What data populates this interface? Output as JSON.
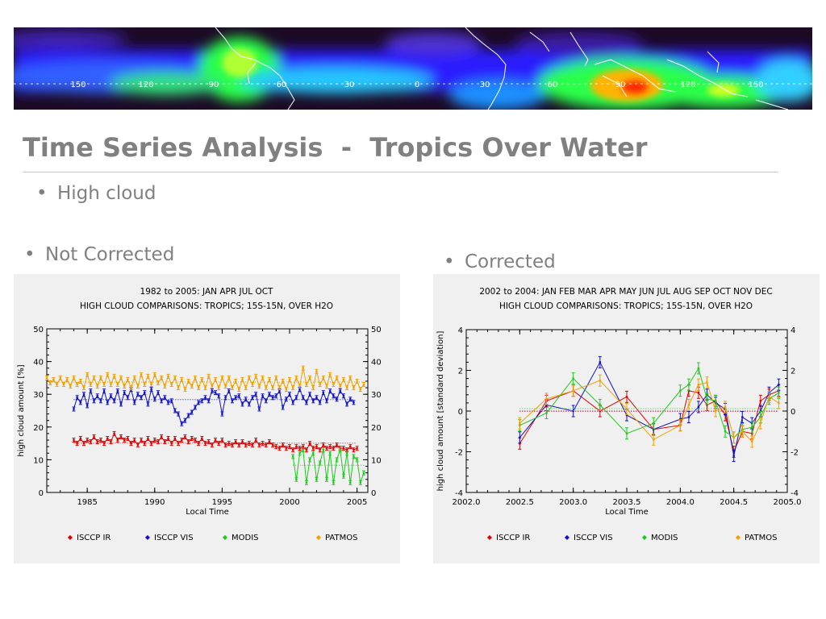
{
  "slide": {
    "title": "Time Series Analysis  -  Tropics Over Water",
    "bullets": [
      {
        "marker": "•",
        "text": "High cloud"
      },
      {
        "marker": "•",
        "text": "Not Corrected"
      },
      {
        "marker": "•",
        "text": "Corrected"
      }
    ]
  },
  "banner": {
    "longitude_labels": [
      "150",
      "120",
      "90",
      "60",
      "30",
      "0",
      "30",
      "60",
      "90",
      "120",
      "150"
    ],
    "colors": {
      "background": "#1c0a24",
      "band": "#2a1cff",
      "high": "#2bff4a",
      "peak": "#ffb400",
      "max": "#ff2a00"
    }
  },
  "chart_data": [
    {
      "type": "line",
      "title": "1982 to 2005: JAN APR JUL OCT",
      "subtitle": "HIGH CLOUD COMPARISONS: TROPICS; 15S-15N, OVER H2O",
      "xlabel": "Local Time",
      "ylabel": "high cloud amount [%]",
      "xlim": [
        1982,
        2005.8
      ],
      "ylim": [
        0,
        50
      ],
      "xticks": [
        "1985",
        "1990",
        "1995",
        "2000",
        "2005"
      ],
      "yticks": [
        "0",
        "10",
        "20",
        "30",
        "40",
        "50"
      ],
      "y2ticks": [
        "0",
        "10",
        "20",
        "30",
        "40",
        "50"
      ],
      "legend_position": "bottom",
      "series": [
        {
          "name": "ISCCP IR",
          "color": "#e00000",
          "marker": "◆",
          "x": [
            1984.0,
            1984.25,
            1984.5,
            1984.75,
            1985.0,
            1985.25,
            1985.5,
            1985.75,
            1986.0,
            1986.25,
            1986.5,
            1986.75,
            1987.0,
            1987.25,
            1987.5,
            1987.75,
            1988.0,
            1988.25,
            1988.5,
            1988.75,
            1989.0,
            1989.25,
            1989.5,
            1989.75,
            1990.0,
            1990.25,
            1990.5,
            1990.75,
            1991.0,
            1991.25,
            1991.5,
            1991.75,
            1992.0,
            1992.25,
            1992.5,
            1992.75,
            1993.0,
            1993.25,
            1993.5,
            1993.75,
            1994.0,
            1994.25,
            1994.5,
            1994.75,
            1995.0,
            1995.25,
            1995.5,
            1995.75,
            1996.0,
            1996.25,
            1996.5,
            1996.75,
            1997.0,
            1997.25,
            1997.5,
            1997.75,
            1998.0,
            1998.25,
            1998.5,
            1998.75,
            1999.0,
            1999.25,
            1999.5,
            1999.75,
            2000.0,
            2000.25,
            2000.5,
            2000.75,
            2001.0,
            2001.25,
            2001.5,
            2001.75,
            2002.0,
            2002.25,
            2002.5,
            2002.75,
            2003.0,
            2003.25,
            2003.5,
            2003.75,
            2004.0,
            2004.25,
            2004.5,
            2004.75,
            2005.0
          ],
          "y": [
            16,
            15,
            16.5,
            15,
            16,
            15.5,
            17,
            15.5,
            16,
            15,
            16.5,
            15.5,
            18,
            16,
            17,
            16,
            16.5,
            15,
            16,
            14.5,
            16,
            15,
            16.5,
            15,
            16,
            15.5,
            17,
            15.5,
            16.5,
            15,
            16.5,
            15,
            16,
            17,
            15.5,
            16.5,
            16,
            15,
            16.5,
            15,
            15.5,
            14.5,
            16,
            15,
            16,
            14.5,
            15,
            14.5,
            15.5,
            14.5,
            15.5,
            14.5,
            15,
            14.5,
            16,
            14.5,
            15,
            14.5,
            15.5,
            14.5,
            14,
            13.5,
            14.5,
            13.5,
            14,
            13,
            14,
            13.5,
            14,
            13,
            15,
            13.5,
            14,
            13,
            14.5,
            13.5,
            14,
            13.5,
            14.5,
            13.5,
            13.5,
            13,
            14,
            13,
            13.5
          ]
        },
        {
          "name": "ISCCP VIS",
          "color": "#1010c8",
          "marker": "◆",
          "x": [
            1984.0,
            1984.25,
            1984.5,
            1984.75,
            1985.0,
            1985.25,
            1985.5,
            1985.75,
            1986.0,
            1986.25,
            1986.5,
            1986.75,
            1987.0,
            1987.25,
            1987.5,
            1987.75,
            1988.0,
            1988.25,
            1988.5,
            1988.75,
            1989.0,
            1989.25,
            1989.5,
            1989.75,
            1990.0,
            1990.25,
            1990.5,
            1990.75,
            1991.0,
            1991.25,
            1991.5,
            1991.75,
            1992.0,
            1992.25,
            1992.5,
            1992.75,
            1993.0,
            1993.25,
            1993.5,
            1993.75,
            1994.0,
            1994.25,
            1994.5,
            1994.75,
            1995.0,
            1995.25,
            1995.5,
            1995.75,
            1996.0,
            1996.25,
            1996.5,
            1996.75,
            1997.0,
            1997.25,
            1997.5,
            1997.75,
            1998.0,
            1998.25,
            1998.5,
            1998.75,
            1999.0,
            1999.25,
            1999.5,
            1999.75,
            2000.0,
            2000.25,
            2000.5,
            2000.75,
            2001.0,
            2001.25,
            2001.5,
            2001.75,
            2002.0,
            2002.25,
            2002.5,
            2002.75,
            2003.0,
            2003.25,
            2003.5,
            2003.75,
            2004.0,
            2004.25,
            2004.5,
            2004.75
          ],
          "y": [
            25.5,
            29,
            27.5,
            30,
            26.5,
            31,
            28,
            29.5,
            28,
            31,
            27.5,
            29.5,
            28,
            31,
            27,
            30.5,
            29,
            31.5,
            27.5,
            30,
            29,
            30.5,
            27,
            31.5,
            28.5,
            30.5,
            28,
            29,
            27.5,
            28,
            25,
            24,
            21,
            22,
            23.5,
            24.5,
            26,
            27.5,
            28,
            29,
            28,
            31,
            30.5,
            29.5,
            24,
            29,
            31,
            28,
            29,
            29.5,
            27,
            28.5,
            27,
            29,
            30,
            25.5,
            29.5,
            28,
            30,
            29,
            29.5,
            31,
            26,
            28.5,
            30,
            27.5,
            29,
            31.5,
            29,
            27.5,
            30,
            28,
            29,
            27.5,
            30.5,
            28,
            31,
            29.5,
            28.5,
            31,
            29.5,
            27,
            28.5,
            27.5
          ]
        },
        {
          "name": "MODIS",
          "color": "#1ec81e",
          "marker": "◆",
          "x": [
            2000.25,
            2000.5,
            2000.75,
            2001.0,
            2001.25,
            2001.5,
            2001.75,
            2002.0,
            2002.25,
            2002.5,
            2002.75,
            2003.0,
            2003.25,
            2003.5,
            2003.75,
            2004.0,
            2004.25,
            2004.5,
            2004.75,
            2005.0,
            2005.25,
            2005.5
          ],
          "y": [
            11,
            4,
            12,
            13,
            3,
            10,
            12,
            4,
            9,
            13,
            4,
            12,
            3,
            10,
            13,
            5,
            12,
            3,
            11,
            10,
            3,
            6
          ]
        },
        {
          "name": "PATMOS",
          "color": "#f0a000",
          "marker": "◆",
          "x": [
            1982.0,
            1982.25,
            1982.5,
            1982.75,
            1983.0,
            1983.25,
            1983.5,
            1983.75,
            1984.0,
            1984.25,
            1984.5,
            1984.75,
            1985.0,
            1985.25,
            1985.5,
            1985.75,
            1986.0,
            1986.25,
            1986.5,
            1986.75,
            1987.0,
            1987.25,
            1987.5,
            1987.75,
            1988.0,
            1988.25,
            1988.5,
            1988.75,
            1989.0,
            1989.25,
            1989.5,
            1989.75,
            1990.0,
            1990.25,
            1990.5,
            1990.75,
            1991.0,
            1991.25,
            1991.5,
            1991.75,
            1992.0,
            1992.25,
            1992.5,
            1992.75,
            1993.0,
            1993.25,
            1993.5,
            1993.75,
            1994.0,
            1994.25,
            1994.5,
            1994.75,
            1995.0,
            1995.25,
            1995.5,
            1995.75,
            1996.0,
            1996.25,
            1996.5,
            1996.75,
            1997.0,
            1997.25,
            1997.5,
            1997.75,
            1998.0,
            1998.25,
            1998.5,
            1998.75,
            1999.0,
            1999.25,
            1999.5,
            1999.75,
            2000.0,
            2000.25,
            2000.5,
            2000.75,
            2001.0,
            2001.25,
            2001.5,
            2001.75,
            2002.0,
            2002.25,
            2002.5,
            2002.75,
            2003.0,
            2003.25,
            2003.5,
            2003.75,
            2004.0,
            2004.25,
            2004.5,
            2004.75,
            2005.0,
            2005.25,
            2005.5
          ],
          "y": [
            35,
            33.5,
            34.5,
            33,
            35,
            33,
            34.5,
            32.5,
            35,
            33,
            34,
            32,
            36,
            33,
            35,
            32.5,
            35,
            33,
            36,
            33,
            35.5,
            33,
            35,
            32.5,
            34.5,
            32,
            35,
            32.5,
            36,
            33,
            35.5,
            33,
            36,
            33.5,
            35,
            32.5,
            35.5,
            33,
            35,
            32,
            34.5,
            31.5,
            34,
            32.5,
            35,
            32,
            34.5,
            32,
            35.5,
            32.5,
            34.5,
            32,
            35,
            32.5,
            35,
            32,
            34,
            31.5,
            34.5,
            32,
            35,
            33,
            35.5,
            32.5,
            35,
            32,
            34.5,
            32,
            35,
            32,
            34,
            31.5,
            34.5,
            32,
            35,
            32.5,
            38,
            33,
            35,
            32,
            37,
            33,
            35,
            32.5,
            36,
            33,
            35,
            32.5,
            34.5,
            32,
            35,
            32,
            34,
            31.5,
            33
          ]
        }
      ]
    },
    {
      "type": "line",
      "title": "2002 to 2004: JAN FEB MAR APR MAY JUN JUL AUG SEP OCT NOV DEC",
      "subtitle": "HIGH CLOUD COMPARISONS: TROPICS; 15S-15N, OVER H2O",
      "xlabel": "Local Time",
      "ylabel": "high cloud amount [standard deviation]",
      "xlim": [
        2002.0,
        2005.0
      ],
      "ylim": [
        -4,
        4
      ],
      "xticks": [
        "2002.0",
        "2002.5",
        "2003.0",
        "2003.5",
        "2004.0",
        "2004.5",
        "2005.0"
      ],
      "yticks": [
        "-4",
        "-2",
        "0",
        "2",
        "4"
      ],
      "y2ticks": [
        "-4",
        "-2",
        "0",
        "2",
        "4"
      ],
      "legend_position": "bottom",
      "series": [
        {
          "name": "ISCCP IR",
          "color": "#e00000",
          "marker": "◆",
          "x": [
            2002.5,
            2002.75,
            2003.0,
            2003.25,
            2003.5,
            2003.75,
            2004.0,
            2004.08,
            2004.17,
            2004.25,
            2004.33,
            2004.42,
            2004.5,
            2004.58,
            2004.67,
            2004.75,
            2004.83,
            2004.92
          ],
          "y": [
            -1.6,
            0.5,
            1.0,
            0.0,
            0.7,
            -0.9,
            -0.7,
            1.0,
            0.9,
            0.3,
            0.5,
            -0.2,
            -2.0,
            -1.0,
            -1.1,
            0.5,
            0.8,
            1.0
          ]
        },
        {
          "name": "ISCCP VIS",
          "color": "#1010c8",
          "marker": "◆",
          "x": [
            2002.5,
            2002.75,
            2003.0,
            2003.25,
            2003.5,
            2003.75,
            2004.0,
            2004.08,
            2004.17,
            2004.25,
            2004.33,
            2004.42,
            2004.5,
            2004.58,
            2004.67,
            2004.75,
            2004.83,
            2004.92
          ],
          "y": [
            -1.3,
            0.3,
            0.0,
            2.4,
            -0.2,
            -0.9,
            -0.4,
            -0.3,
            0.2,
            0.8,
            0.4,
            0.1,
            -2.2,
            -0.3,
            -0.6,
            0.0,
            0.9,
            1.3
          ]
        },
        {
          "name": "MODIS",
          "color": "#1ec81e",
          "marker": "◆",
          "x": [
            2002.5,
            2002.75,
            2003.0,
            2003.25,
            2003.5,
            2003.75,
            2004.0,
            2004.08,
            2004.17,
            2004.25,
            2004.33,
            2004.42,
            2004.5,
            2004.58,
            2004.67,
            2004.75,
            2004.83,
            2004.92
          ],
          "y": [
            -0.7,
            -0.1,
            1.6,
            0.3,
            -1.1,
            -0.6,
            1.0,
            1.3,
            2.1,
            0.6,
            0.5,
            -1.0,
            -1.3,
            -0.9,
            -0.8,
            -0.3,
            0.6,
            0.9
          ]
        },
        {
          "name": "PATMOS",
          "color": "#f0a000",
          "marker": "◆",
          "x": [
            2002.5,
            2002.75,
            2003.0,
            2003.25,
            2003.5,
            2003.75,
            2004.0,
            2004.08,
            2004.17,
            2004.25,
            2004.33,
            2004.42,
            2004.5,
            2004.58,
            2004.67,
            2004.75,
            2004.83,
            2004.92
          ],
          "y": [
            -0.6,
            0.6,
            1.0,
            1.5,
            0.1,
            -1.4,
            -0.7,
            0.3,
            1.3,
            1.4,
            0.0,
            0.2,
            -1.3,
            -1.0,
            -1.5,
            -0.6,
            0.7,
            0.4
          ]
        }
      ]
    }
  ]
}
